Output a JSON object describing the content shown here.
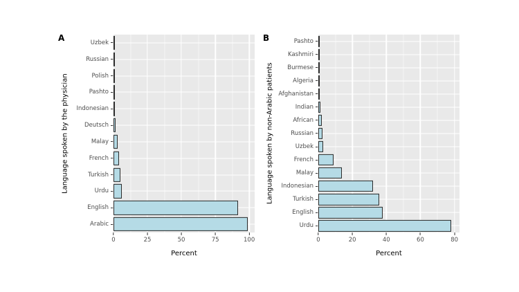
{
  "figure": {
    "background": "#ffffff",
    "panel_background": "#e9e9e9",
    "bar_fill": "#b5dbe6",
    "bar_stroke": "#2a2a2a"
  },
  "chart_data": [
    {
      "type": "bar",
      "orientation": "horizontal",
      "panel_label": "A",
      "ylabel": "Language spoken by the physician",
      "xlabel": "Percent",
      "categories": [
        "Uzbek",
        "Russian",
        "Polish",
        "Pashto",
        "Indonesian",
        "Deutsch",
        "Malay",
        "French",
        "Turkish",
        "Urdu",
        "English",
        "Arabic"
      ],
      "values": [
        1,
        1,
        1,
        1,
        1,
        1.5,
        3,
        4,
        5,
        6,
        92,
        99
      ],
      "xticks": [
        0,
        25,
        50,
        75,
        100
      ],
      "xlim": [
        0,
        104
      ],
      "grid": true,
      "legend": "none"
    },
    {
      "type": "bar",
      "orientation": "horizontal",
      "panel_label": "B",
      "ylabel": "Language spoken by non-Arabic patients",
      "xlabel": "Percent",
      "categories": [
        "Pashto",
        "Kashmiri",
        "Burmese",
        "Algeria",
        "Afghanistan",
        "Indian",
        "African",
        "Russian",
        "Uzbek",
        "French",
        "Malay",
        "Indonesian",
        "Turkish",
        "English",
        "Urdu"
      ],
      "values": [
        0.8,
        0.8,
        0.8,
        0.8,
        0.8,
        1.2,
        2,
        2.3,
        3,
        9,
        14,
        32,
        36,
        38,
        78
      ],
      "xticks": [
        0,
        20,
        40,
        60,
        80
      ],
      "xlim": [
        0,
        83
      ],
      "grid": true,
      "legend": "none"
    }
  ]
}
